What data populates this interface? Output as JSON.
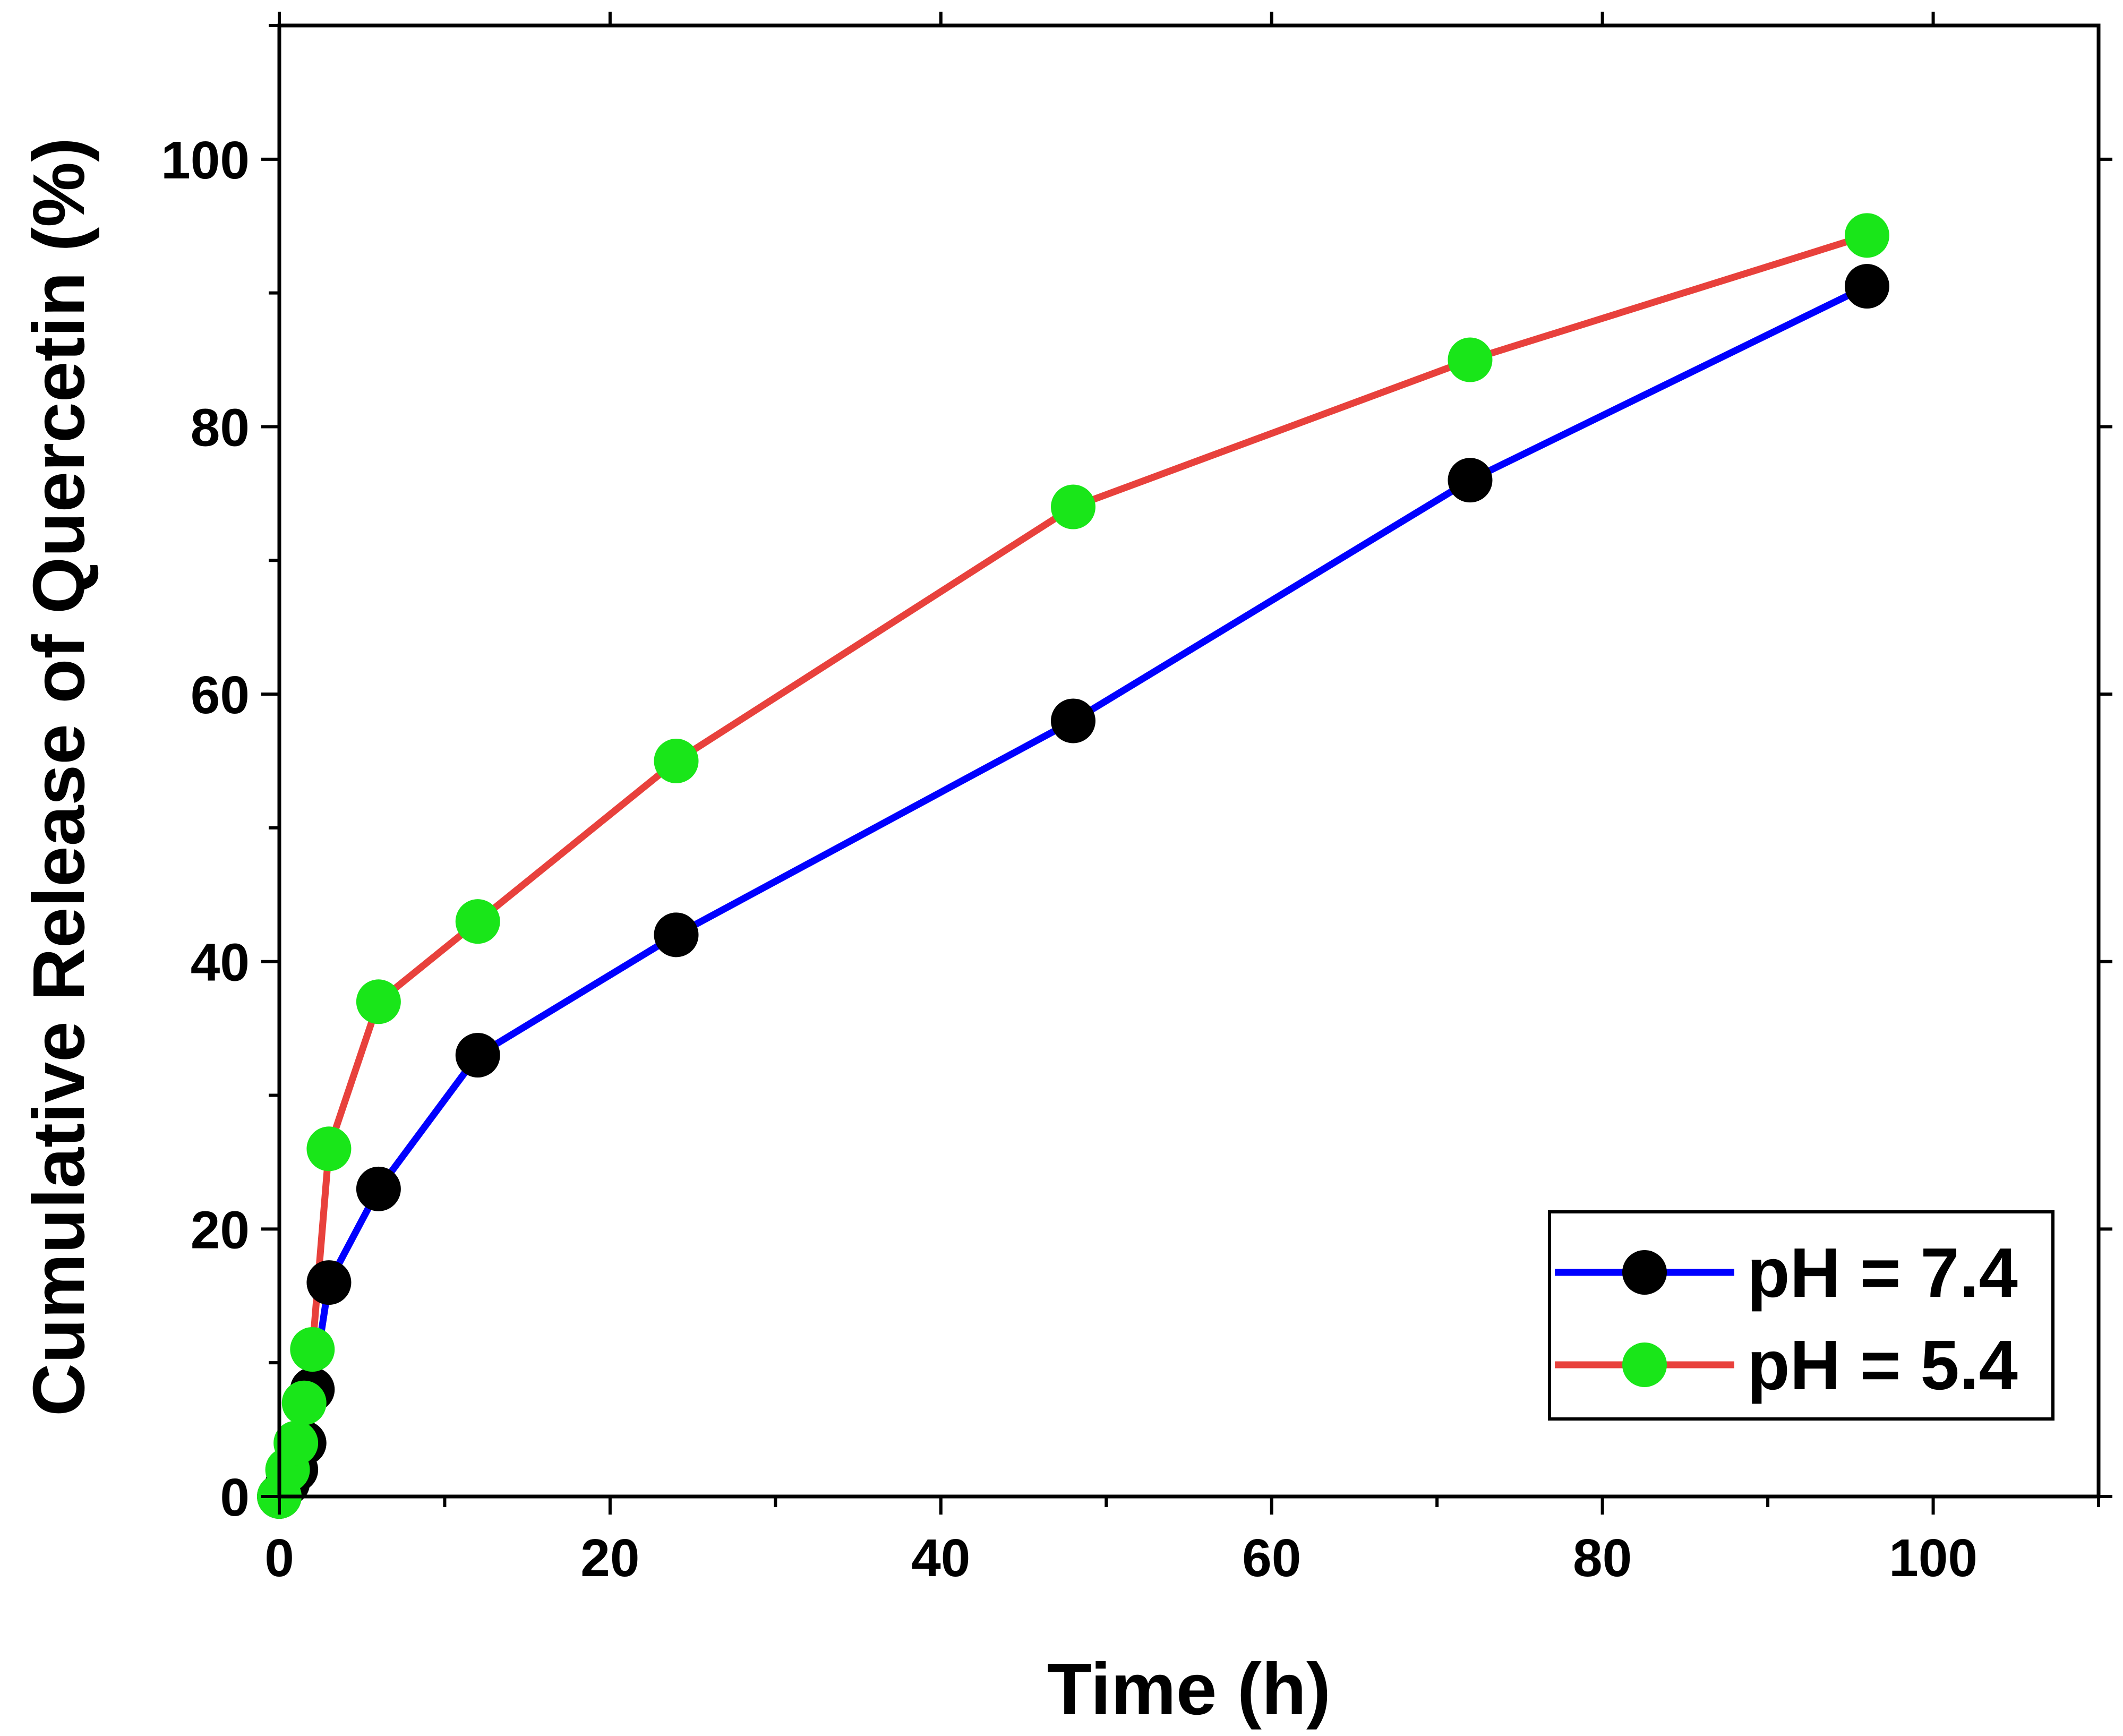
{
  "chart_data": {
    "type": "line",
    "title": "",
    "xlabel": "Time (h)",
    "ylabel": "Cumulative Release of Quercetin (%)",
    "xlim": [
      0,
      110
    ],
    "ylim": [
      0,
      110
    ],
    "x_ticks": [
      0,
      20,
      40,
      60,
      80,
      100
    ],
    "y_ticks": [
      0,
      20,
      40,
      60,
      80,
      100
    ],
    "grid": false,
    "legend_position": "bottom-right",
    "series": [
      {
        "name": "pH = 7.4",
        "line_color": "#0000ff",
        "marker_color": "#000000",
        "x": [
          0,
          0.5,
          1,
          1.5,
          2,
          3,
          6,
          12,
          24,
          48,
          72,
          96
        ],
        "y": [
          0,
          1,
          2,
          4,
          8,
          16,
          23,
          33,
          42,
          58,
          76,
          90.5
        ]
      },
      {
        "name": "pH = 5.4",
        "line_color": "#e8413c",
        "marker_color": "#19e619",
        "x": [
          0,
          0.5,
          1,
          1.5,
          2,
          3,
          6,
          12,
          24,
          48,
          72,
          96
        ],
        "y": [
          0,
          2,
          4,
          7,
          11,
          26,
          37,
          43,
          55,
          74,
          85,
          94.3
        ]
      }
    ]
  }
}
